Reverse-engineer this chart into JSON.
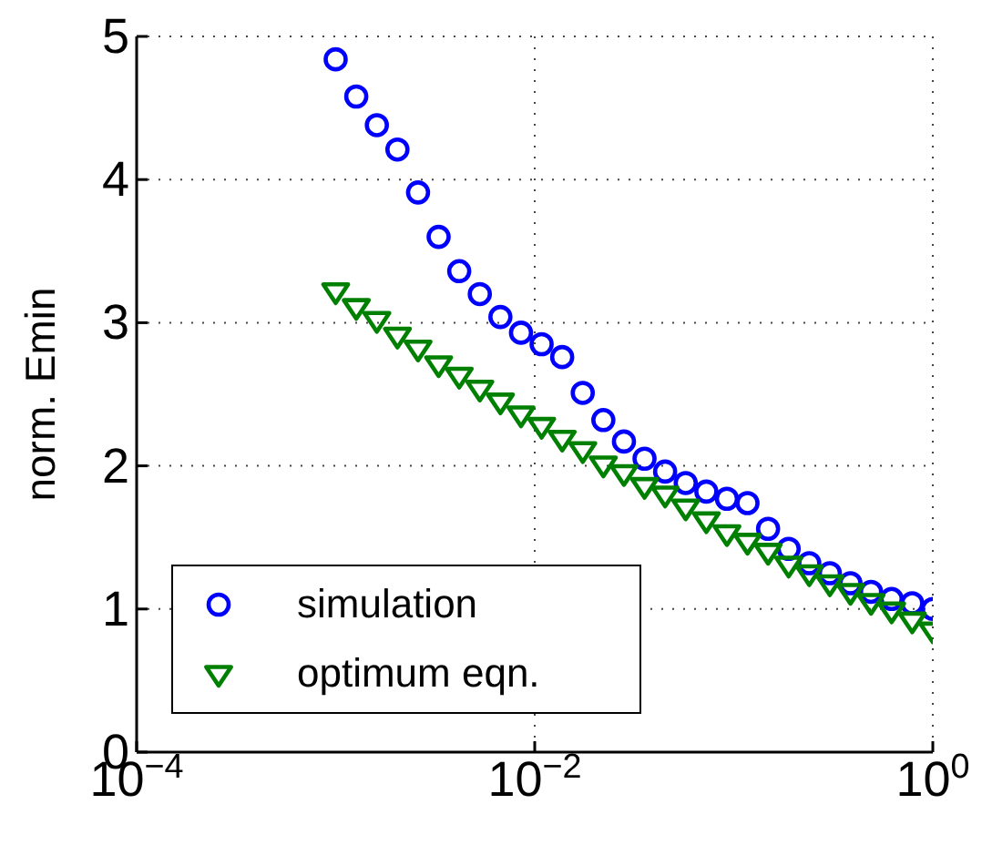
{
  "chart_data": {
    "type": "scatter",
    "ylabel": "norm. Emin",
    "log": "x",
    "grid": true,
    "legend": "bottom left",
    "xlim": [
      0.0001,
      1
    ],
    "ylim": [
      0,
      5
    ],
    "xticks": [
      {
        "value": 0.0001,
        "label": "10$^{−4}$"
      },
      {
        "value": 0.01,
        "label": "10$^{−2}$"
      },
      {
        "value": 1,
        "label": "10$^{0}$"
      }
    ],
    "yticks": [
      0,
      1,
      2,
      3,
      4,
      5
    ],
    "x": [
      0.001,
      0.001269,
      0.00161,
      0.002043,
      0.002593,
      0.00329,
      0.004175,
      0.005298,
      0.006723,
      0.008532,
      0.01083,
      0.01374,
      0.01743,
      0.02212,
      0.02807,
      0.03562,
      0.0452,
      0.05736,
      0.07279,
      0.09237,
      0.1172,
      0.1487,
      0.1887,
      0.2395,
      0.3039,
      0.3857,
      0.4894,
      0.621,
      0.788,
      1
    ],
    "series": [
      {
        "name": "simulation",
        "color": "#0000ff",
        "marker": "circle",
        "values": [
          4.84,
          4.58,
          4.38,
          4.21,
          3.91,
          3.6,
          3.36,
          3.2,
          3.04,
          2.93,
          2.85,
          2.76,
          2.51,
          2.32,
          2.17,
          2.05,
          1.96,
          1.88,
          1.82,
          1.77,
          1.74,
          1.56,
          1.42,
          1.32,
          1.25,
          1.18,
          1.12,
          1.07,
          1.04,
          1.0
        ]
      },
      {
        "name": "optimum eqn.",
        "color": "#008000",
        "marker": "triangle",
        "values": [
          3.22,
          3.11,
          3.02,
          2.91,
          2.82,
          2.71,
          2.63,
          2.54,
          2.45,
          2.36,
          2.28,
          2.19,
          2.11,
          2.01,
          1.95,
          1.86,
          1.8,
          1.71,
          1.62,
          1.53,
          1.47,
          1.4,
          1.31,
          1.25,
          1.18,
          1.12,
          1.05,
          0.99,
          0.92,
          0.85
        ]
      }
    ]
  }
}
